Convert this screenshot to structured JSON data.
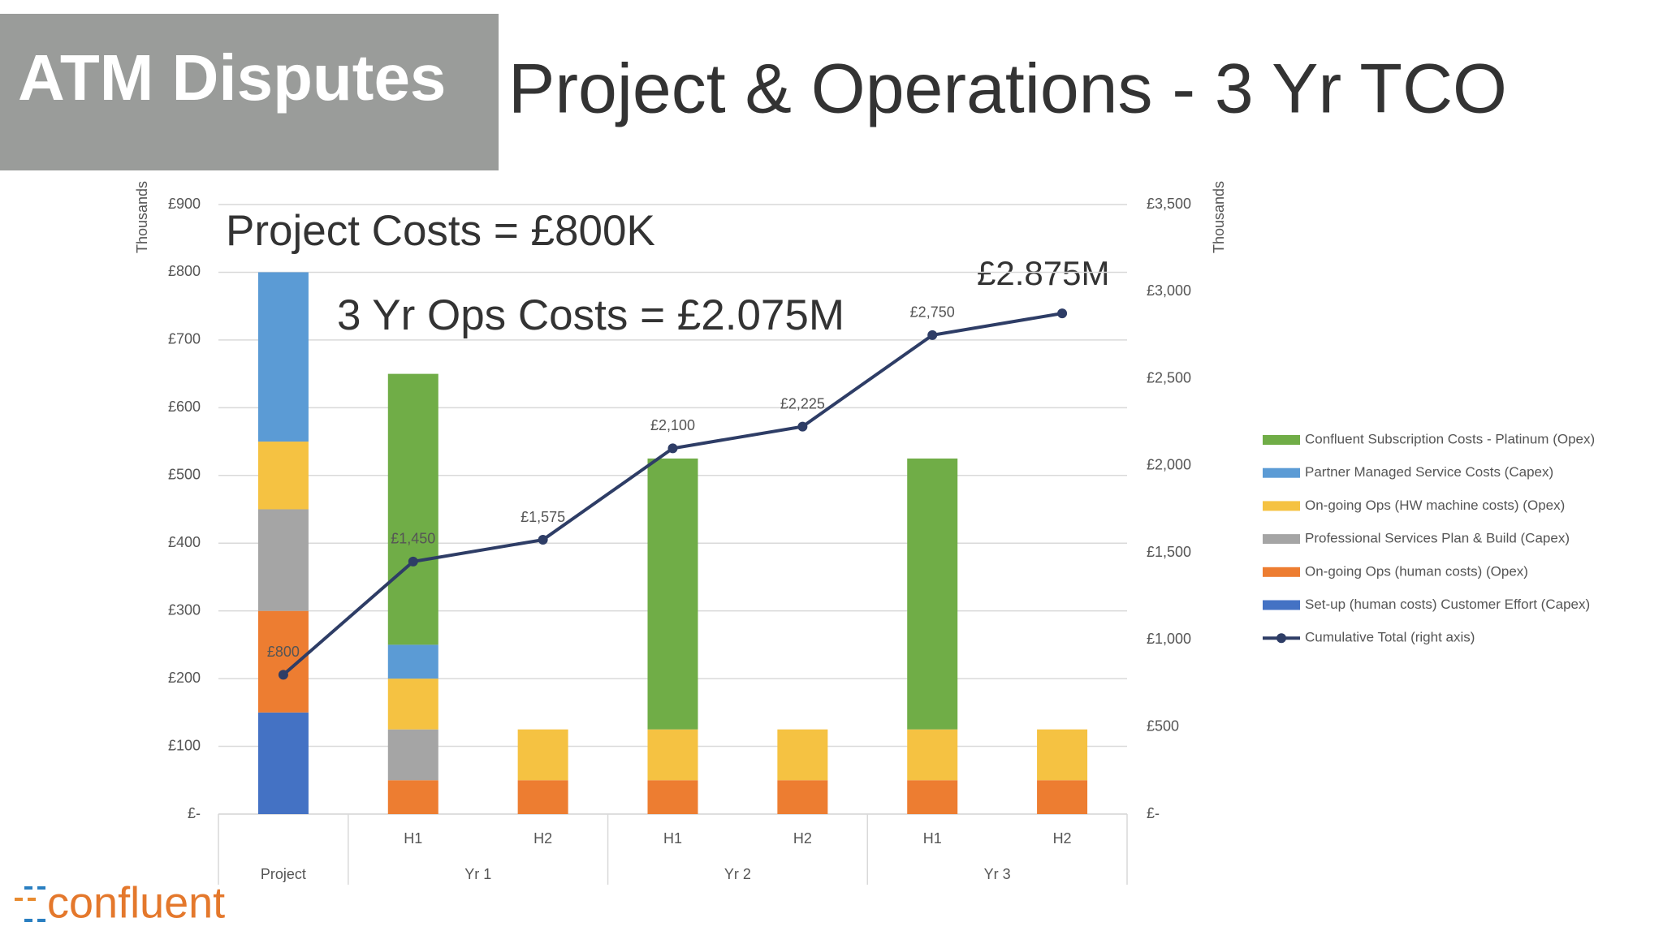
{
  "header": {
    "tag": "ATM Disputes",
    "title": "Project & Operations - 3 Yr TCO"
  },
  "logo": "confluent",
  "chart_data": {
    "type": "bar",
    "stacked": true,
    "categories": [
      "Project",
      "H1",
      "H2",
      "H1",
      "H2",
      "H1",
      "H2"
    ],
    "category_groups": [
      null,
      "Yr 1",
      "Yr 1",
      "Yr 2",
      "Yr 2",
      "Yr 3",
      "Yr 3"
    ],
    "ylabel": "Thousands",
    "y2label": "Thousands",
    "ylim": [
      0,
      900
    ],
    "yticks": [
      {
        "value": 0,
        "label": "£-"
      },
      {
        "value": 100,
        "label": "£100"
      },
      {
        "value": 200,
        "label": "£200"
      },
      {
        "value": 300,
        "label": "£300"
      },
      {
        "value": 400,
        "label": "£400"
      },
      {
        "value": 500,
        "label": "£500"
      },
      {
        "value": 600,
        "label": "£600"
      },
      {
        "value": 700,
        "label": "£700"
      },
      {
        "value": 800,
        "label": "£800"
      },
      {
        "value": 900,
        "label": "£900"
      }
    ],
    "y2lim": [
      0,
      3500
    ],
    "y2ticks": [
      {
        "value": 0,
        "label": "£-"
      },
      {
        "value": 500,
        "label": "£500"
      },
      {
        "value": 1000,
        "label": "£1,000"
      },
      {
        "value": 1500,
        "label": "£1,500"
      },
      {
        "value": 2000,
        "label": "£2,000"
      },
      {
        "value": 2500,
        "label": "£2,500"
      },
      {
        "value": 3000,
        "label": "£3,000"
      },
      {
        "value": 3500,
        "label": "£3,500"
      }
    ],
    "grid": true,
    "legend": "right",
    "series": [
      {
        "name": "Set-up (human costs) Customer Effort (Capex)",
        "color": "#4472c4",
        "values": [
          150,
          0,
          0,
          0,
          0,
          0,
          0
        ]
      },
      {
        "name": "On-going Ops (human costs) (Opex)",
        "color": "#ed7d31",
        "values": [
          150,
          50,
          50,
          50,
          50,
          50,
          50
        ]
      },
      {
        "name": "Professional Services Plan & Build (Capex)",
        "color": "#a5a5a5",
        "values": [
          150,
          75,
          0,
          0,
          0,
          0,
          0
        ]
      },
      {
        "name": "On-going Ops (HW machine costs) (Opex)",
        "color": "#f5c242",
        "values": [
          100,
          75,
          75,
          75,
          75,
          75,
          75
        ]
      },
      {
        "name": "Partner Managed Service Costs (Capex)",
        "color": "#5b9bd5",
        "values": [
          250,
          50,
          0,
          0,
          0,
          0,
          0
        ]
      },
      {
        "name": "Confluent Subscription Costs - Platinum (Opex)",
        "color": "#70ad47",
        "values": [
          0,
          400,
          0,
          400,
          0,
          400,
          0
        ]
      },
      {
        "name": "Cumulative Total (right axis)",
        "type": "line",
        "axis": "y2",
        "color": "#2e3d66",
        "values": [
          800,
          1450,
          1575,
          2100,
          2225,
          2750,
          2875
        ],
        "value_labels": [
          "£800",
          "£1,450",
          "£1,575",
          "£2,100",
          "£2,225",
          "£2,750",
          null
        ]
      }
    ],
    "annotations": [
      "Project Costs = £800K",
      "3 Yr Ops Costs = £2.075M",
      "£2.875M"
    ]
  }
}
